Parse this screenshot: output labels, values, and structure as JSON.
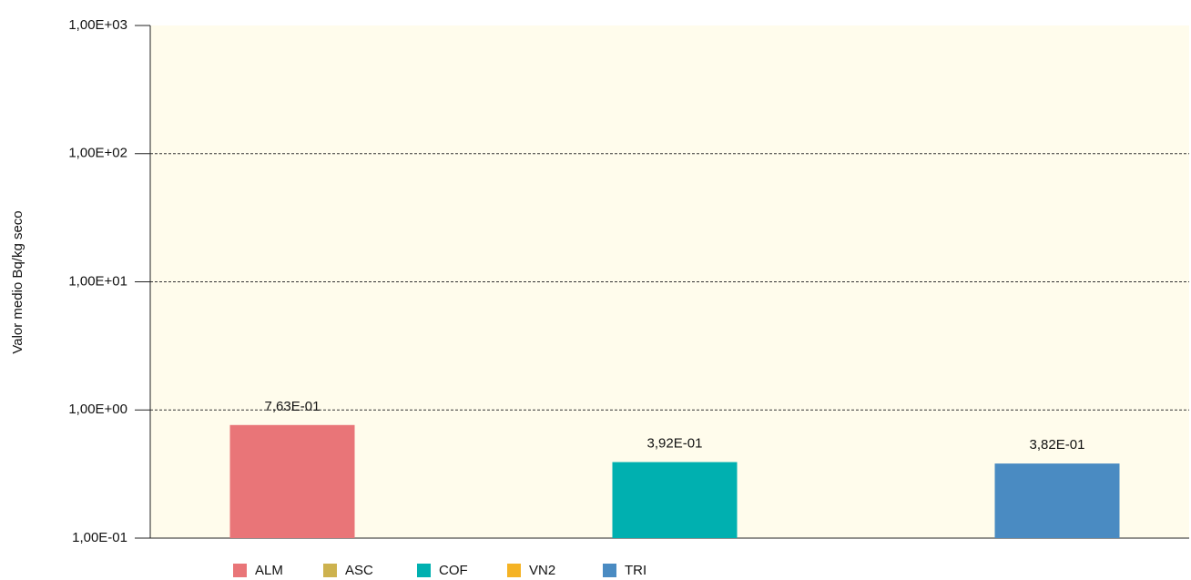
{
  "chart_data": {
    "type": "bar",
    "y_label": "Valor medio Bq/kg seco",
    "categories": [
      null
    ],
    "series": [
      {
        "name": "ALM",
        "color": "#e97578",
        "values": [
          0.763
        ],
        "value_labels": [
          "7,63E-01"
        ]
      },
      {
        "name": "ASC",
        "color": "#cdb24e",
        "values": [
          null
        ]
      },
      {
        "name": "COF",
        "color": "#00b0b0",
        "values": [
          0.392
        ],
        "value_labels": [
          "3,92E-01"
        ]
      },
      {
        "name": "VN2",
        "color": "#f5b324",
        "values": [
          null
        ]
      },
      {
        "name": "TRI",
        "color": "#4a8bc2",
        "values": [
          0.382
        ],
        "value_labels": [
          "3,82E-01"
        ]
      }
    ],
    "log_scale": true,
    "ylim": [
      0.1,
      1000
    ],
    "yticks": [
      {
        "value": 0.1,
        "label": "1,00E-01"
      },
      {
        "value": 1,
        "label": "1,00E+00"
      },
      {
        "value": 10,
        "label": "1,00E+01"
      },
      {
        "value": 100,
        "label": "1,00E+02"
      },
      {
        "value": 1000,
        "label": "1,00E+03"
      }
    ],
    "grid": true,
    "legend": "bottom",
    "background": "#fffcec"
  }
}
